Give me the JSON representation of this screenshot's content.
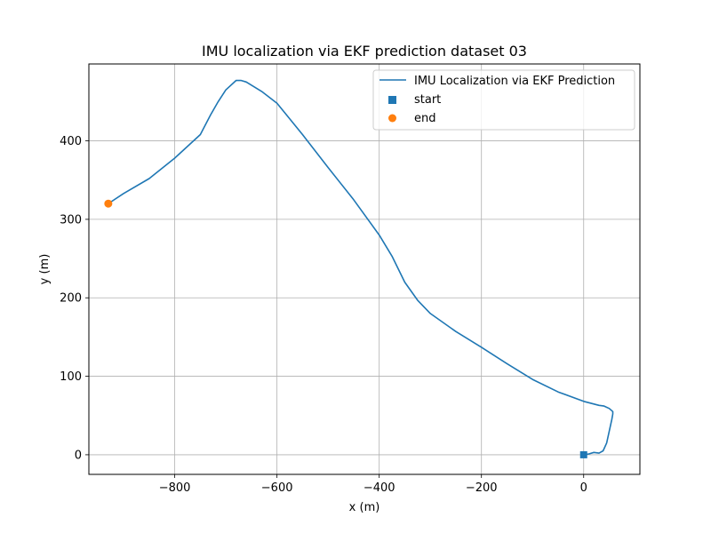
{
  "chart_data": {
    "type": "line",
    "title": "IMU localization via EKF prediction dataset 03",
    "xlabel": "x (m)",
    "ylabel": "y (m)",
    "xlim": [
      -968,
      110
    ],
    "ylim": [
      -25,
      498
    ],
    "xticks": [
      -800,
      -600,
      -400,
      -200,
      0
    ],
    "xtick_labels": [
      "−800",
      "−600",
      "−400",
      "−200",
      "0"
    ],
    "yticks": [
      0,
      100,
      200,
      300,
      400
    ],
    "ytick_labels": [
      "0",
      "100",
      "200",
      "300",
      "400"
    ],
    "grid": true,
    "legend_placement": "upper right",
    "series": [
      {
        "name": "IMU Localization via EKF Prediction",
        "kind": "line",
        "color": "#1f77b4",
        "x": [
          0,
          10,
          20,
          30,
          38,
          45,
          50,
          55,
          57,
          57,
          50,
          40,
          30,
          0,
          -50,
          -100,
          -150,
          -200,
          -250,
          -300,
          -325,
          -350,
          -375,
          -400,
          -450,
          -500,
          -550,
          -600,
          -630,
          -660,
          -670,
          -680,
          -700,
          -715,
          -730,
          -750,
          -800,
          -850,
          -900,
          -930
        ],
        "y": [
          0,
          1,
          3,
          2,
          5,
          15,
          30,
          45,
          52,
          55,
          59,
          62,
          63,
          68,
          80,
          96,
          116,
          137,
          157,
          180,
          197,
          220,
          253,
          280,
          325,
          366,
          408,
          448,
          463,
          475,
          477,
          477,
          465,
          450,
          433,
          408,
          378,
          352,
          333,
          320
        ]
      },
      {
        "name": "start",
        "kind": "scatter",
        "marker": "square",
        "color": "#1f77b4",
        "x": [
          0
        ],
        "y": [
          0
        ]
      },
      {
        "name": "end",
        "kind": "scatter",
        "marker": "circle",
        "color": "#ff7f0e",
        "x": [
          -930
        ],
        "y": [
          320
        ]
      }
    ]
  }
}
